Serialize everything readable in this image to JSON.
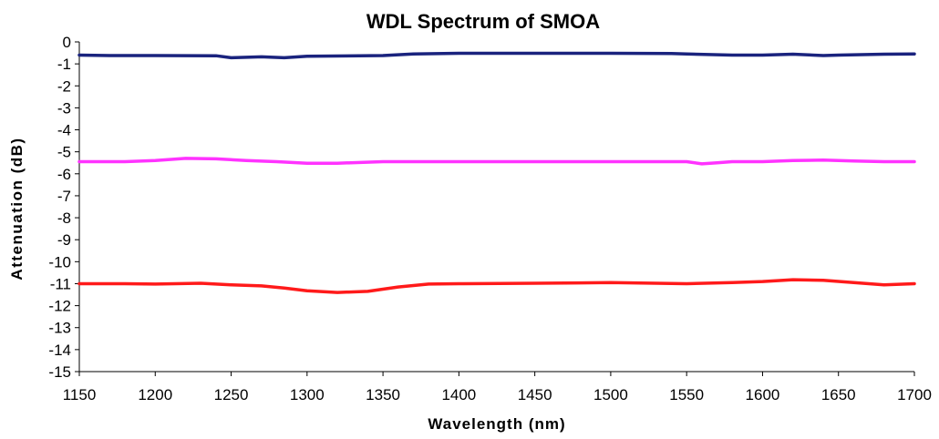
{
  "chart_data": {
    "type": "line",
    "title": "WDL Spectrum of SMOA",
    "xlabel": "Wavelength (nm)",
    "ylabel": "Attenuation (dB)",
    "xlim": [
      1150,
      1700
    ],
    "ylim": [
      -15,
      0
    ],
    "xticks": [
      "1150",
      "1200",
      "1250",
      "1300",
      "1350",
      "1400",
      "1450",
      "1500",
      "1550",
      "1600",
      "1650",
      "1700"
    ],
    "yticks": [
      "0",
      "-1",
      "-2",
      "-3",
      "-4",
      "-5",
      "-6",
      "-7",
      "-8",
      "-9",
      "-10",
      "-11",
      "-12",
      "-13",
      "-14",
      "-15"
    ],
    "grid": false,
    "legend": "none",
    "series": [
      {
        "color": "#1a237e",
        "x": [
          1150,
          1170,
          1200,
          1240,
          1250,
          1270,
          1285,
          1300,
          1350,
          1370,
          1400,
          1450,
          1500,
          1540,
          1550,
          1580,
          1600,
          1620,
          1640,
          1650,
          1680,
          1700
        ],
        "y": [
          -0.6,
          -0.62,
          -0.62,
          -0.63,
          -0.72,
          -0.68,
          -0.72,
          -0.65,
          -0.62,
          -0.55,
          -0.52,
          -0.52,
          -0.52,
          -0.53,
          -0.55,
          -0.6,
          -0.6,
          -0.56,
          -0.62,
          -0.6,
          -0.56,
          -0.55
        ]
      },
      {
        "color": "#ff33ff",
        "x": [
          1150,
          1180,
          1200,
          1220,
          1240,
          1260,
          1280,
          1300,
          1320,
          1350,
          1400,
          1450,
          1500,
          1550,
          1560,
          1570,
          1580,
          1600,
          1620,
          1640,
          1660,
          1680,
          1700
        ],
        "y": [
          -5.45,
          -5.45,
          -5.4,
          -5.3,
          -5.32,
          -5.4,
          -5.45,
          -5.52,
          -5.52,
          -5.45,
          -5.45,
          -5.45,
          -5.45,
          -5.45,
          -5.55,
          -5.5,
          -5.45,
          -5.45,
          -5.4,
          -5.38,
          -5.42,
          -5.45,
          -5.45
        ]
      },
      {
        "color": "#ff1a1a",
        "x": [
          1150,
          1180,
          1200,
          1230,
          1250,
          1270,
          1285,
          1300,
          1320,
          1340,
          1360,
          1380,
          1400,
          1450,
          1500,
          1550,
          1580,
          1600,
          1620,
          1640,
          1660,
          1680,
          1700
        ],
        "y": [
          -11.0,
          -11.0,
          -11.02,
          -10.98,
          -11.05,
          -11.1,
          -11.2,
          -11.32,
          -11.4,
          -11.35,
          -11.15,
          -11.02,
          -11.0,
          -10.98,
          -10.95,
          -11.0,
          -10.95,
          -10.9,
          -10.82,
          -10.85,
          -10.95,
          -11.05,
          -11.0
        ]
      }
    ]
  }
}
